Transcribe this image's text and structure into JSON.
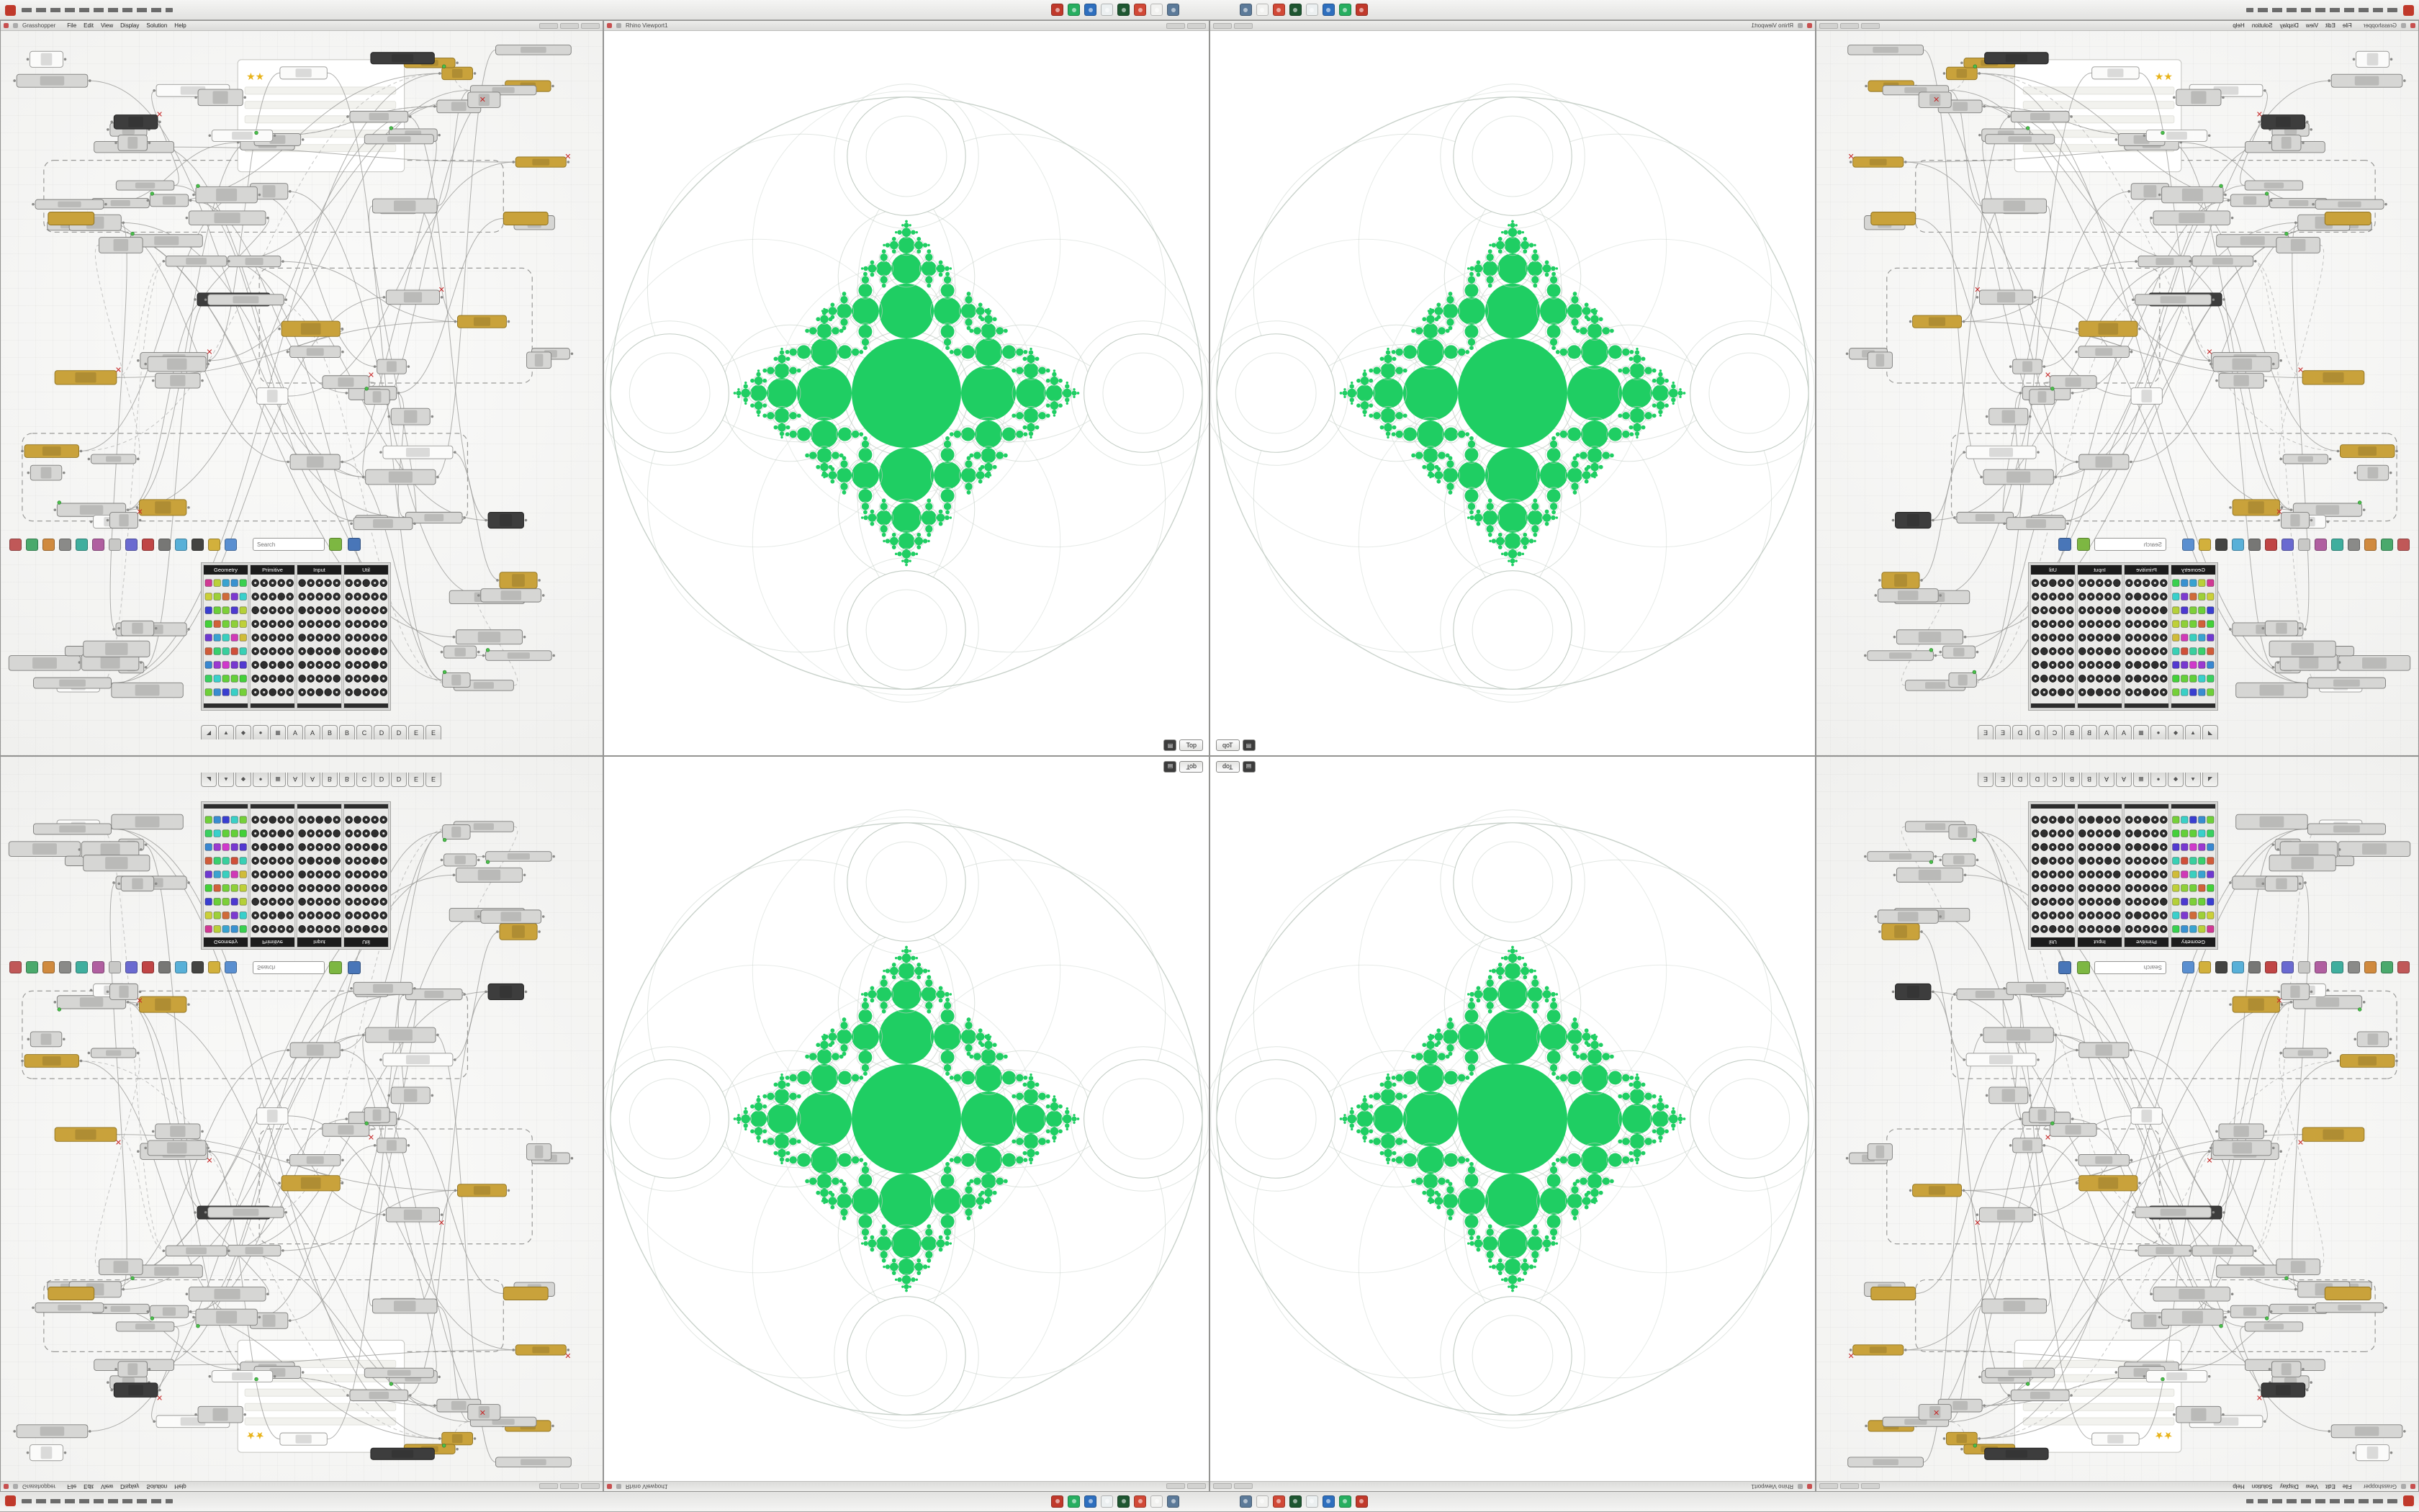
{
  "os": {
    "icons": [
      {
        "name": "close-app-icon",
        "color": "#c0392b"
      },
      {
        "name": "green-app-icon",
        "color": "#27ae60"
      },
      {
        "name": "blue-app-icon",
        "color": "#2e6fbe"
      },
      {
        "name": "files-app-icon",
        "color": "#ecf0f1"
      },
      {
        "name": "terminal-app-icon",
        "color": "#1e5631"
      },
      {
        "name": "red-app-icon",
        "color": "#d14836"
      },
      {
        "name": "doc-app-icon",
        "color": "#f2f2f0"
      },
      {
        "name": "settings-app-icon",
        "color": "#5c7a99"
      }
    ]
  },
  "gh": {
    "window_title": "Grasshopper",
    "menu": [
      "File",
      "Edit",
      "View",
      "Display",
      "Solution",
      "Help"
    ],
    "search_placeholder": "Search",
    "palette_sections": [
      "Geometry",
      "Primitive",
      "Input",
      "Util"
    ],
    "tab_glyphs": [
      "◢",
      "▲",
      "◆",
      "●",
      "▦"
    ],
    "tab_letters": [
      "A",
      "A",
      "B",
      "B",
      "C",
      "D",
      "D",
      "E",
      "E"
    ],
    "toolbar_icons": [
      {
        "name": "sketch-icon",
        "color": "#c05858"
      },
      {
        "name": "pan-icon",
        "color": "#4aa96c"
      },
      {
        "name": "zoom-icon",
        "color": "#d08a3e"
      },
      {
        "name": "named-view-icon",
        "color": "#8a8a88"
      },
      {
        "name": "preview-wireframe-icon",
        "color": "#3fae9e"
      },
      {
        "name": "preview-shaded-icon",
        "color": "#b05fa0"
      },
      {
        "name": "group-icon",
        "color": "#c8c8c6"
      },
      {
        "name": "cluster-icon",
        "color": "#6a6ad0"
      },
      {
        "name": "bake-icon",
        "color": "#c04545"
      },
      {
        "name": "preview-settings-icon",
        "color": "#777775"
      },
      {
        "name": "hide-preview-icon",
        "color": "#58b0d8"
      },
      {
        "name": "camera-icon",
        "color": "#444442"
      },
      {
        "name": "canvas-paint-icon",
        "color": "#d2b03c"
      },
      {
        "name": "magnifier-icon",
        "color": "#5a8fd0"
      }
    ]
  },
  "vp": {
    "window_title": "Rhino Viewport1",
    "view_tab": "Top"
  },
  "glyphs": {
    "star": "★",
    "error": "✕",
    "menu_grid": "▤"
  },
  "colors": {
    "accent_green": "#1fce63",
    "lace": "#c3cdc5",
    "canvas_bg": "#f6f6f4"
  }
}
